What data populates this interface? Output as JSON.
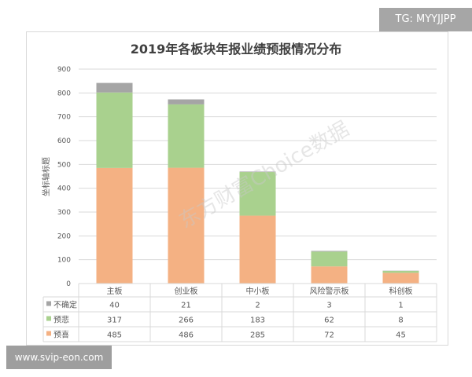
{
  "badge": "TG: MYYJJPP",
  "footer": "www.svip-eon.com",
  "watermark": "东方财富Choice数据",
  "colors": {
    "不确定": "#a5a5a5",
    "预悲": "#a9d18e",
    "预喜": "#f4b183"
  },
  "chart_data": {
    "type": "bar",
    "stacked": true,
    "title": "2019年各板块年报业绩预报情况分布",
    "ylabel": "坐标轴标题",
    "xlabel": "",
    "ylim": [
      0,
      900
    ],
    "yticks": [
      0,
      100,
      200,
      300,
      400,
      500,
      600,
      700,
      800,
      900
    ],
    "grid": true,
    "legend": "data-table",
    "categories": [
      "主板",
      "创业板",
      "中小板",
      "风险警示板",
      "科创板"
    ],
    "series": [
      {
        "name": "不确定",
        "values": [
          40,
          21,
          2,
          3,
          1
        ]
      },
      {
        "name": "预悲",
        "values": [
          317,
          266,
          183,
          62,
          8
        ]
      },
      {
        "name": "预喜",
        "values": [
          485,
          486,
          285,
          72,
          45
        ]
      }
    ]
  }
}
